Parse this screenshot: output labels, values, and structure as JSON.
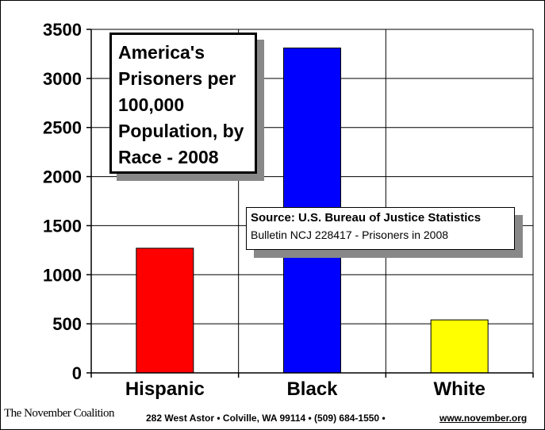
{
  "chart_data": {
    "type": "bar",
    "title": "America's Prisoners per 100,000 Population, by Race - 2008",
    "title_lines": [
      "America's",
      "Prisoners per",
      "100,000",
      "Population, by",
      "Race - 2008"
    ],
    "categories": [
      "Hispanic",
      "Black",
      "White"
    ],
    "values": [
      1270,
      3310,
      540
    ],
    "colors": [
      "#ff0000",
      "#0000ff",
      "#ffff00"
    ],
    "ylim": [
      0,
      3500
    ],
    "yticks": [
      0,
      500,
      1000,
      1500,
      2000,
      2500,
      3000,
      3500
    ],
    "ytick_labels": [
      "0",
      "500",
      "1000",
      "1500",
      "2000",
      "2500",
      "3000",
      "3500"
    ],
    "grid": true,
    "legend": "none",
    "xlabel": "",
    "ylabel": ""
  },
  "annotation": {
    "line1": "Source: U.S. Bureau of Justice Statistics",
    "line2": "Bulletin NCJ 228417 - Prisoners in 2008"
  },
  "footer": {
    "logo_text": "The November Coalition",
    "address": "282 West Astor • Colville, WA 99114 • (509) 684-1550 •",
    "website": "www.november.org"
  }
}
